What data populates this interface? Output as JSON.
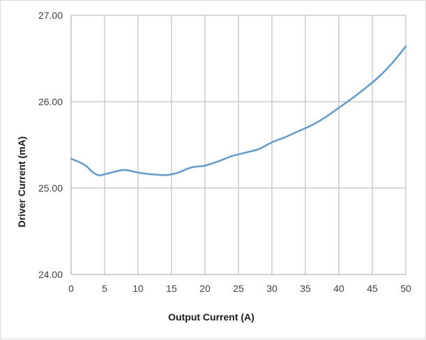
{
  "chart_data": {
    "type": "line",
    "xlabel": "Output Current (A)",
    "ylabel": "Driver Current (mA)",
    "xlim": [
      0,
      50
    ],
    "ylim": [
      24.0,
      27.0
    ],
    "x_ticks": [
      "0",
      "5",
      "10",
      "15",
      "20",
      "25",
      "30",
      "35",
      "40",
      "45",
      "50"
    ],
    "y_ticks": [
      "24.00",
      "25.00",
      "26.00",
      "27.00"
    ],
    "grid": true,
    "legend": "none",
    "series": [
      {
        "color": "#5b9bd5",
        "x": [
          0,
          2,
          3,
          4,
          5,
          6,
          8,
          10,
          12,
          14,
          15,
          16,
          18,
          20,
          22,
          24,
          26,
          28,
          30,
          32,
          34,
          36,
          38,
          40,
          42,
          44,
          46,
          48,
          50
        ],
        "y": [
          25.34,
          25.27,
          25.2,
          25.15,
          25.16,
          25.18,
          25.21,
          25.18,
          25.16,
          25.15,
          25.16,
          25.18,
          25.24,
          25.26,
          25.31,
          25.37,
          25.41,
          25.45,
          25.53,
          25.59,
          25.66,
          25.73,
          25.82,
          25.93,
          26.04,
          26.16,
          26.29,
          26.45,
          26.64
        ]
      }
    ]
  }
}
